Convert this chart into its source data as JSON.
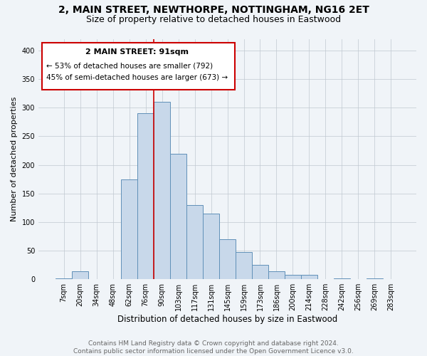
{
  "title": "2, MAIN STREET, NEWTHORPE, NOTTINGHAM, NG16 2ET",
  "subtitle": "Size of property relative to detached houses in Eastwood",
  "xlabel": "Distribution of detached houses by size in Eastwood",
  "ylabel": "Number of detached properties",
  "footer_line1": "Contains HM Land Registry data © Crown copyright and database right 2024.",
  "footer_line2": "Contains public sector information licensed under the Open Government Licence v3.0.",
  "categories": [
    "7sqm",
    "20sqm",
    "34sqm",
    "48sqm",
    "62sqm",
    "76sqm",
    "90sqm",
    "103sqm",
    "117sqm",
    "131sqm",
    "145sqm",
    "159sqm",
    "173sqm",
    "186sqm",
    "200sqm",
    "214sqm",
    "228sqm",
    "242sqm",
    "256sqm",
    "269sqm",
    "283sqm"
  ],
  "values": [
    1,
    14,
    0,
    0,
    175,
    290,
    310,
    220,
    130,
    115,
    70,
    47,
    25,
    14,
    8,
    8,
    0,
    2,
    0,
    2,
    0
  ],
  "bar_color": "#c8d8ea",
  "bar_edge_color": "#6090b8",
  "property_label": "2 MAIN STREET: 91sqm",
  "annotation_line1": "← 53% of detached houses are smaller (792)",
  "annotation_line2": "45% of semi-detached houses are larger (673) →",
  "vline_color": "#cc0000",
  "vline_position": 6,
  "ylim": [
    0,
    420
  ],
  "yticks": [
    0,
    50,
    100,
    150,
    200,
    250,
    300,
    350,
    400
  ],
  "box_color": "#cc0000",
  "background_color": "#f0f4f8",
  "title_fontsize": 10,
  "subtitle_fontsize": 9,
  "annotation_fontsize": 8,
  "footer_fontsize": 6.5,
  "ylabel_fontsize": 8,
  "xlabel_fontsize": 8.5
}
